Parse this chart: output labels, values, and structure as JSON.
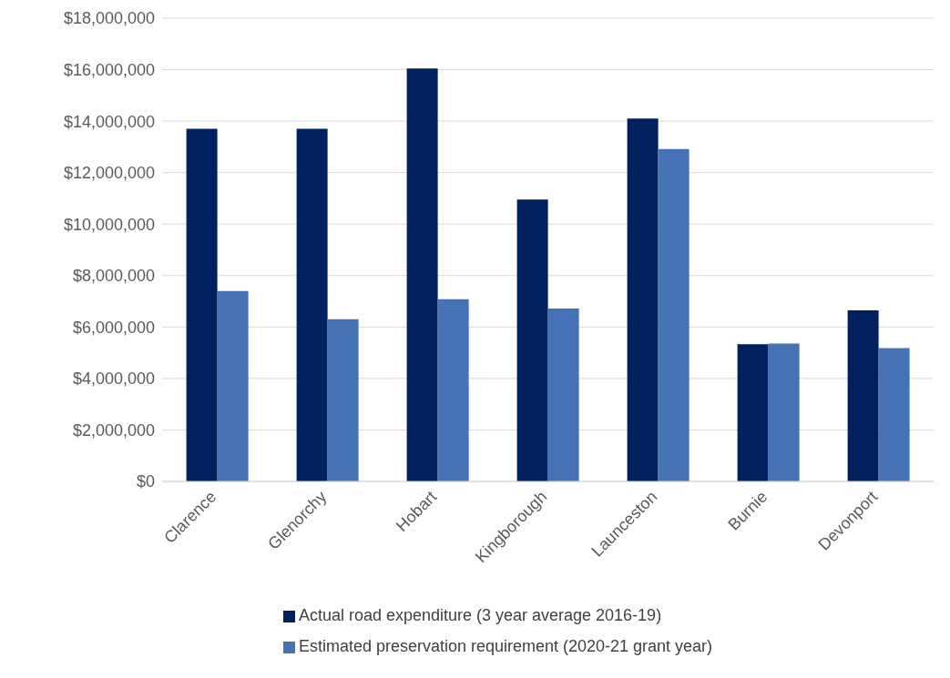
{
  "chart_data": {
    "type": "bar",
    "categories": [
      "Clarence",
      "Glenorchy",
      "Hobart",
      "Kingborough",
      "Launceston",
      "Burnie",
      "Devonport"
    ],
    "series": [
      {
        "name": "Actual road expenditure (3 year average 2016-19)",
        "color": "#002060",
        "values": [
          13700000,
          13700000,
          16050000,
          10950000,
          14100000,
          5330000,
          6650000
        ]
      },
      {
        "name": "Estimated preservation requirement (2020-21 grant year)",
        "color": "#4472b4",
        "values": [
          7400000,
          6300000,
          7080000,
          6720000,
          12920000,
          5360000,
          5180000
        ]
      }
    ],
    "ylim": [
      0,
      18000000
    ],
    "yticks": [
      {
        "value": 0,
        "label": "$0"
      },
      {
        "value": 2000000,
        "label": "$2,000,000"
      },
      {
        "value": 4000000,
        "label": "$4,000,000"
      },
      {
        "value": 6000000,
        "label": "$6,000,000"
      },
      {
        "value": 8000000,
        "label": "$8,000,000"
      },
      {
        "value": 10000000,
        "label": "$10,000,000"
      },
      {
        "value": 12000000,
        "label": "$12,000,000"
      },
      {
        "value": 14000000,
        "label": "$14,000,000"
      },
      {
        "value": 16000000,
        "label": "$16,000,000"
      },
      {
        "value": 18000000,
        "label": "$18,000,000"
      }
    ],
    "grid": "y",
    "legend": "bottom"
  }
}
